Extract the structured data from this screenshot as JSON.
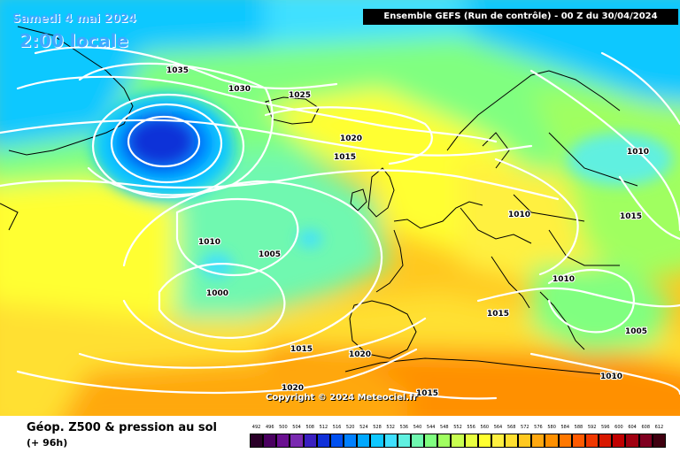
{
  "header": {
    "date": "Samedi 4 mai 2024",
    "local_time": "2:00 locale",
    "model_run": "Ensemble GEFS  (Run de contrôle)  -  00 Z du 30/04/2024"
  },
  "map": {
    "copyright": "Copyright © 2024 Meteociel.fr",
    "isobars": [
      {
        "value": "1035"
      },
      {
        "value": "1030"
      },
      {
        "value": "1025"
      },
      {
        "value": "1020"
      },
      {
        "value": "1015"
      },
      {
        "value": "1010"
      },
      {
        "value": "1005"
      },
      {
        "value": "1000"
      },
      {
        "value": "1010"
      },
      {
        "value": "1015"
      },
      {
        "value": "1010"
      },
      {
        "value": "1010"
      },
      {
        "value": "1015"
      },
      {
        "value": "1005"
      },
      {
        "value": "1010"
      },
      {
        "value": "1015"
      },
      {
        "value": "1020"
      },
      {
        "value": "1020"
      },
      {
        "value": "1015"
      }
    ],
    "features": {
      "low_pressure_areas": [
        "Iceland low",
        "Atlantic low near 1000 hPa"
      ],
      "high_pressure_areas": [
        "Greenland high",
        "Azores/Iberia high"
      ]
    }
  },
  "footer": {
    "title": "Géop. Z500 & pression au sol",
    "forecast_hour": "(+ 96h)"
  },
  "legend": {
    "labels": [
      "492",
      "496",
      "500",
      "504",
      "508",
      "512",
      "516",
      "520",
      "524",
      "528",
      "532",
      "536",
      "540",
      "544",
      "548",
      "552",
      "556",
      "560",
      "564",
      "568",
      "572",
      "576",
      "580",
      "584",
      "588",
      "592",
      "596",
      "600",
      "604",
      "608",
      "612"
    ],
    "colors": [
      "#2a0028",
      "#4a0060",
      "#6a1090",
      "#7a2ab0",
      "#3a20c0",
      "#1030d8",
      "#0050f0",
      "#0080ff",
      "#00a8ff",
      "#10c8ff",
      "#40e0ff",
      "#60f0e0",
      "#70f8b0",
      "#80ff80",
      "#a0ff60",
      "#c8ff50",
      "#e8ff40",
      "#ffff30",
      "#fff040",
      "#ffe030",
      "#ffc820",
      "#ffa810",
      "#ff9000",
      "#ff7800",
      "#ff5a00",
      "#f03800",
      "#d81800",
      "#c00000",
      "#a00010",
      "#800020",
      "#400010"
    ]
  },
  "colors": {
    "isobar": "#ffffff",
    "coast": "#000000",
    "time_text": "#40a8ff"
  }
}
